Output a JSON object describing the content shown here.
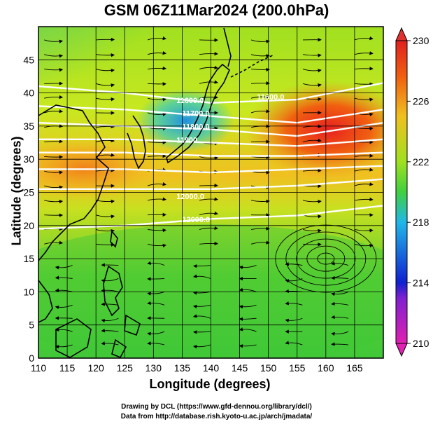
{
  "title": "GSM 06Z11Mar2024 (200.0hPa)",
  "axes": {
    "xlabel": "Longitude (degrees)",
    "ylabel": "Latitude  (degrees)",
    "xlim": [
      110,
      170
    ],
    "ylim": [
      0,
      50
    ],
    "xticks": [
      110,
      115,
      120,
      125,
      130,
      135,
      140,
      145,
      150,
      155,
      160,
      165
    ],
    "yticks": [
      0,
      5,
      10,
      15,
      20,
      25,
      30,
      35,
      40,
      45
    ]
  },
  "colorbar": {
    "labels": [
      210,
      214,
      218,
      222,
      226,
      230
    ],
    "range": [
      210,
      230
    ],
    "colors": [
      "#d800b8",
      "#1020d0",
      "#20b8e8",
      "#40d040",
      "#a0e020",
      "#f0c020",
      "#f06010",
      "#e02020"
    ]
  },
  "credits": {
    "line1": "Drawing by DCL (https://www.gfd-dennou.org/library/dcl/)",
    "line2": "Data from http://database.rish.kyoto-u.ac.jp/arch/jmadata/"
  },
  "chart_data": {
    "type": "heatmap",
    "variable": "temperature field with geopotential height contours and streamlines",
    "contour_labels": [
      {
        "text": "11600.0",
        "lon": 148,
        "lat": 39
      },
      {
        "text": "11600.0",
        "lon": 134,
        "lat": 38.5
      },
      {
        "text": "11700.0",
        "lon": 135,
        "lat": 36.5
      },
      {
        "text": "11800.0",
        "lon": 135,
        "lat": 34.5
      },
      {
        "text": "11900",
        "lon": 134,
        "lat": 32.5
      },
      {
        "text": "12000.0",
        "lon": 134,
        "lat": 24
      },
      {
        "text": "12000.0",
        "lon": 135,
        "lat": 20.5
      }
    ],
    "contours": [
      {
        "points": [
          [
            110,
            41
          ],
          [
            125,
            40
          ],
          [
            140,
            38.5
          ],
          [
            155,
            39
          ],
          [
            170,
            41.5
          ]
        ]
      },
      {
        "points": [
          [
            110,
            38
          ],
          [
            125,
            37.5
          ],
          [
            140,
            36.5
          ],
          [
            155,
            35.5
          ],
          [
            170,
            37.5
          ]
        ]
      },
      {
        "points": [
          [
            110,
            35.5
          ],
          [
            125,
            35
          ],
          [
            140,
            34.5
          ],
          [
            155,
            33.5
          ],
          [
            170,
            35.5
          ]
        ]
      },
      {
        "points": [
          [
            110,
            33
          ],
          [
            125,
            33
          ],
          [
            140,
            32.5
          ],
          [
            155,
            32
          ],
          [
            170,
            33
          ]
        ]
      },
      {
        "points": [
          [
            110,
            31
          ],
          [
            125,
            31
          ],
          [
            140,
            30.5
          ],
          [
            155,
            30.5
          ],
          [
            170,
            31
          ]
        ]
      },
      {
        "points": [
          [
            110,
            28.5
          ],
          [
            125,
            28.5
          ],
          [
            140,
            28
          ],
          [
            155,
            28.5
          ],
          [
            170,
            29
          ]
        ]
      },
      {
        "points": [
          [
            110,
            25.5
          ],
          [
            125,
            25.5
          ],
          [
            140,
            25.5
          ],
          [
            155,
            26
          ],
          [
            170,
            27
          ]
        ]
      },
      {
        "points": [
          [
            110,
            19.5
          ],
          [
            125,
            20
          ],
          [
            140,
            21
          ],
          [
            155,
            21.5
          ],
          [
            170,
            23
          ]
        ]
      }
    ]
  }
}
